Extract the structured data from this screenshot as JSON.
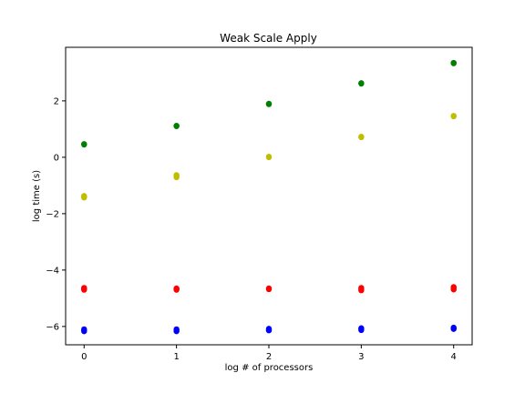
{
  "chart_data": {
    "type": "scatter",
    "title": "Weak Scale Apply",
    "xlabel": "log # of processors",
    "ylabel": "log time (s)",
    "xlim": [
      -0.2,
      4.2
    ],
    "ylim": [
      -6.65,
      3.9
    ],
    "xticks": [
      "0",
      "1",
      "2",
      "3",
      "4"
    ],
    "yticks": [
      "−6",
      "−4",
      "−2",
      "0",
      "2"
    ],
    "grid": false,
    "legend": "none",
    "series": [
      {
        "color": "#008000",
        "x": [
          0,
          0,
          1,
          1,
          2,
          2,
          3,
          3,
          4,
          4
        ],
        "y": [
          0.47,
          0.45,
          1.12,
          1.1,
          1.9,
          1.88,
          2.63,
          2.61,
          3.35,
          3.33
        ]
      },
      {
        "color": "#bfbf00",
        "x": [
          0,
          0,
          0,
          1,
          1,
          1,
          2,
          2,
          3,
          3,
          4,
          4
        ],
        "y": [
          -1.37,
          -1.4,
          -1.43,
          -0.63,
          -0.67,
          -0.71,
          0.02,
          0.0,
          0.73,
          0.71,
          1.47,
          1.45
        ]
      },
      {
        "color": "#ff0000",
        "x": [
          0,
          0,
          0,
          1,
          1,
          1,
          2,
          2,
          3,
          3,
          3,
          4,
          4,
          4
        ],
        "y": [
          -4.63,
          -4.66,
          -4.7,
          -4.65,
          -4.67,
          -4.7,
          -4.65,
          -4.68,
          -4.63,
          -4.67,
          -4.72,
          -4.6,
          -4.64,
          -4.69
        ]
      },
      {
        "color": "#0000ff",
        "x": [
          0,
          0,
          0,
          1,
          1,
          1,
          2,
          2,
          2,
          3,
          3,
          3,
          4,
          4,
          4
        ],
        "y": [
          -6.1,
          -6.13,
          -6.17,
          -6.1,
          -6.13,
          -6.17,
          -6.08,
          -6.11,
          -6.14,
          -6.06,
          -6.09,
          -6.13,
          -6.04,
          -6.06,
          -6.09
        ]
      }
    ]
  }
}
